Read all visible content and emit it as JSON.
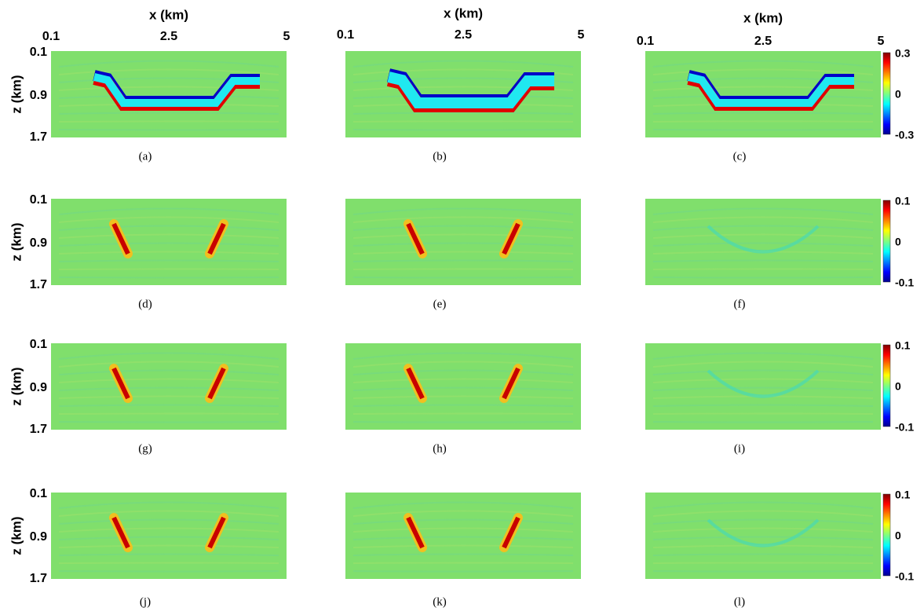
{
  "x_axis_label": "x (km)",
  "z_axis_label": "z (km)",
  "x_ticks": [
    "0.1",
    "2.5",
    "5"
  ],
  "z_ticks": [
    "0.1",
    "0.9",
    "1.7"
  ],
  "rows": [
    {
      "colorbar_ticks": [
        "0.3",
        "0",
        "-0.3"
      ],
      "captions": [
        "(a)",
        "(b)",
        "(c)"
      ]
    },
    {
      "colorbar_ticks": [
        "0.1",
        "0",
        "-0.1"
      ],
      "captions": [
        "(d)",
        "(e)",
        "(f)"
      ]
    },
    {
      "colorbar_ticks": [
        "0.1",
        "0",
        "-0.1"
      ],
      "captions": [
        "(g)",
        "(h)",
        "(i)"
      ]
    },
    {
      "colorbar_ticks": [
        "0.1",
        "0",
        "-0.1"
      ],
      "captions": [
        "(j)",
        "(k)",
        "(l)"
      ]
    }
  ]
}
